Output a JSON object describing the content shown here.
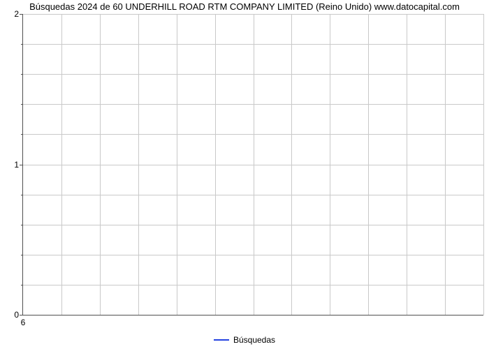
{
  "chart": {
    "type": "line",
    "title_left": "Búsquedas 2024 de 60 UNDERHILL ROAD RTM COMPANY LIMITED (Reino Unido)",
    "title_right": "www.datocapital.com",
    "title_fontsize": 13,
    "title_color": "#000000",
    "background_color": "#ffffff",
    "grid_color": "#c9c9c9",
    "axis_color": "#4f4f4f",
    "tick_fontsize": 12,
    "y": {
      "min": 0,
      "max": 2,
      "major_ticks": [
        0,
        1,
        2
      ],
      "minor_step": 0.2
    },
    "x": {
      "categories": [
        "6"
      ],
      "col_count": 12
    },
    "series": [
      {
        "name": "Búsquedas",
        "color": "#2442e0",
        "line_width": 2,
        "values": []
      }
    ],
    "legend": {
      "position": "bottom-center"
    }
  }
}
